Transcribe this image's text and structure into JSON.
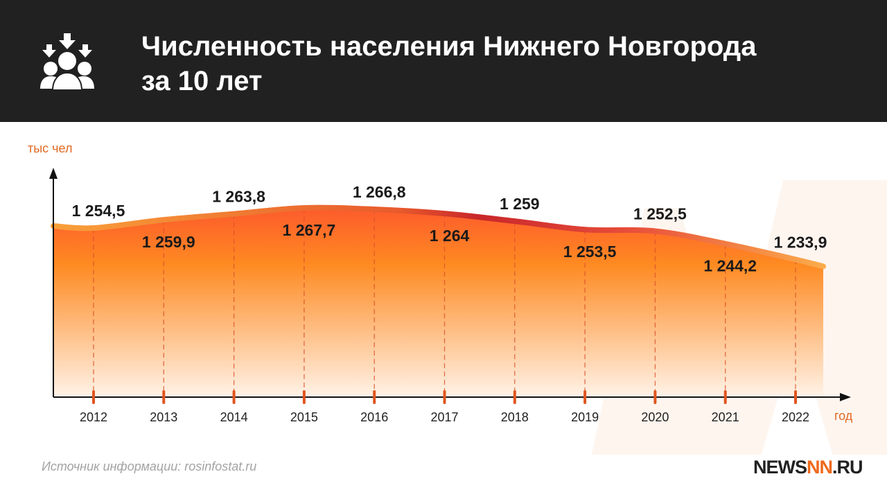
{
  "header": {
    "title": "Численность населения Нижнего Новгорода за 10 лет",
    "icon": "people-group-icon"
  },
  "source": "Источник информации: rosinfostat.ru",
  "logo": {
    "part1": "NEWS",
    "part2": "NN",
    "part3": ".RU"
  },
  "colors": {
    "header_bg": "#222121",
    "accent": "#ee6a1c",
    "curve_dark": "#d6322a"
  },
  "chart_data": {
    "type": "area",
    "title": "Численность населения Нижнего Новгорода за 10 лет",
    "ylabel": "тыс чел",
    "xlabel": "год",
    "categories": [
      "2012",
      "2013",
      "2014",
      "2015",
      "2016",
      "2017",
      "2018",
      "2019",
      "2020",
      "2021",
      "2022"
    ],
    "values": [
      1254.5,
      1259.9,
      1263.8,
      1267.7,
      1266.8,
      1264,
      1259,
      1253.5,
      1252.5,
      1244.2,
      1233.9
    ],
    "labels": [
      "1 254,5",
      "1 259,9",
      "1 263,8",
      "1 267,7",
      "1 266,8",
      "1 264",
      "1 259",
      "1 253,5",
      "1 252,5",
      "1 244,2",
      "1 233,9"
    ],
    "grid": false
  }
}
